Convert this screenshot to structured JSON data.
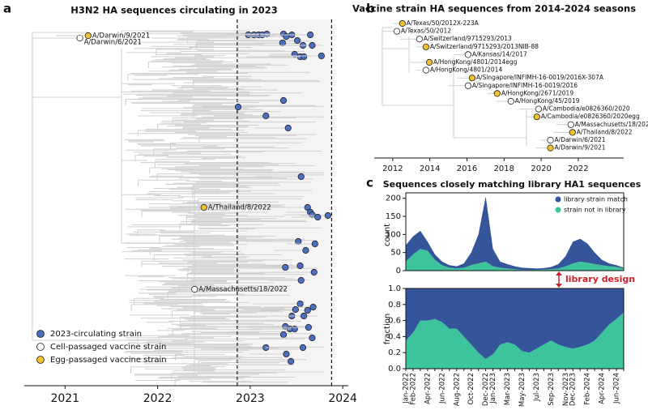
{
  "panel_labels": [
    "a",
    "b",
    "c"
  ],
  "chart_data": [
    {
      "type": "scatter",
      "title": "H3N2 HA sequences circulating in 2023",
      "xlim": [
        2020.56,
        2024.06
      ],
      "xticks": [
        2021,
        2022,
        2023,
        2024
      ],
      "ylim": [
        435,
        0
      ],
      "vlines": [
        2022.86,
        2023.88
      ],
      "series": [
        {
          "name": "2023-circulating strain",
          "color": "#4a6fc0",
          "x": [
            2022.98,
            2023.04,
            2023.09,
            2023.13,
            2023.18,
            2023.36,
            2023.39,
            2023.45,
            2023.65,
            2023.51,
            2023.57,
            2023.35,
            2023.67,
            2023.48,
            2023.54,
            2023.58,
            2023.77,
            2022.87,
            2023.36,
            2023.17,
            2023.41,
            2023.55,
            2023.62,
            2023.65,
            2023.67,
            2023.84,
            2023.73,
            2023.52,
            2023.7,
            2023.6,
            2023.54,
            2023.69,
            2023.38,
            2023.55,
            2023.54,
            2023.68,
            2023.62,
            2023.49,
            2023.45,
            2023.58,
            2023.38,
            2023.43,
            2023.48,
            2023.63,
            2023.36,
            2023.67,
            2023.17,
            2023.57,
            2023.39,
            2023.44
          ],
          "y": [
            8,
            8,
            8,
            8,
            7,
            7,
            10,
            8,
            8,
            15,
            21,
            18,
            21,
            32,
            35,
            35,
            34,
            97,
            89,
            108,
            123,
            183,
            221,
            227,
            230,
            231,
            233,
            263,
            266,
            274,
            293,
            301,
            295,
            311,
            340,
            344,
            348,
            347,
            355,
            355,
            368,
            371,
            371,
            369,
            378,
            382,
            394,
            394,
            402,
            411
          ]
        },
        {
          "name": "Cell-passaged vaccine strain",
          "color": "#ffffff",
          "x": [
            2021.16,
            2022.4
          ],
          "y": [
            12,
            322
          ],
          "labels": [
            "A/Darwin/6/2021",
            "A/Massachusetts/18/2022"
          ]
        },
        {
          "name": "Egg-passaged vaccine strain",
          "color": "#f0c030",
          "x": [
            2021.25,
            2022.5
          ],
          "y": [
            9,
            221
          ],
          "labels": [
            "A/Darwin/9/2021",
            "A/Thailand/8/2022"
          ]
        }
      ]
    },
    {
      "type": "scatter",
      "title": "Vaccine strain HA sequences from 2014-2024 seasons",
      "xlim": [
        2011.0,
        2024.45
      ],
      "xticks": [
        2012,
        2014,
        2016,
        2018,
        2020,
        2022
      ],
      "labels": [
        "A/Texas/50/2012X-223A",
        "A/Texas/50/2012",
        "A/Switzerland/9715293/2013",
        "A/Switzerland/9715293/2013NIB-88",
        "A/Kansas/14/2017",
        "A/HongKong/4801/2014egg",
        "A/HongKong/4801/2014",
        "A/Singapore/INFIMH-16-0019/2016X-307A",
        "A/Singapore/INFIMH-16-0019/2016",
        "A/HongKong/2671/2019",
        "A/HongKong/45/2019",
        "A/Cambodia/e0826360/2020",
        "A/Cambodia/e0826360/2020egg",
        "A/Massachusetts/18/2022",
        "A/Thailand/8/2022",
        "A/Darwin/6/2021",
        "A/Darwin/9/2021"
      ],
      "x": [
        2012.52,
        2012.22,
        2013.44,
        2013.79,
        2016.06,
        2013.97,
        2013.79,
        2016.28,
        2016.06,
        2017.63,
        2018.37,
        2019.86,
        2019.77,
        2021.6,
        2021.69,
        2020.5,
        2020.5
      ],
      "colors": [
        "#f0c030",
        "#ffffff",
        "#ffffff",
        "#f0c030",
        "#ffffff",
        "#f0c030",
        "#ffffff",
        "#f0c030",
        "#ffffff",
        "#f0c030",
        "#ffffff",
        "#ffffff",
        "#f0c030",
        "#ffffff",
        "#f0c030",
        "#ffffff",
        "#f0c030"
      ]
    },
    {
      "type": "area",
      "title": "Sequences closely matching library HA1 sequences",
      "ylabel": "count",
      "categories": [
        "Jan-2022",
        "Feb-2022",
        null,
        "Apr-2022",
        null,
        "Jun-2022",
        null,
        "Aug-2022",
        null,
        "Oct-2022",
        null,
        "Dec-2022",
        "Jan-2023",
        null,
        "Mar-2023",
        null,
        "May-2023",
        null,
        "Jul-2023",
        null,
        "Sep-2023",
        null,
        "Nov-2023",
        "Dec-2023",
        null,
        "Feb-2024",
        null,
        "Apr-2024",
        null,
        "Jun-2024",
        null
      ],
      "ylim": [
        0,
        215
      ],
      "yticks": [
        0,
        50,
        100,
        150,
        200
      ],
      "series": [
        {
          "name": "library strain match",
          "color": "#34559a",
          "values": [
            45,
            50,
            50,
            25,
            15,
            10,
            7,
            6,
            12,
            35,
            80,
            180,
            48,
            17,
            12,
            8,
            6,
            5,
            4,
            4,
            6,
            12,
            28,
            60,
            63,
            53,
            32,
            15,
            8,
            5,
            2
          ]
        },
        {
          "name": "strain not in library",
          "color": "#3ec49c",
          "values": [
            25,
            45,
            60,
            55,
            30,
            15,
            8,
            6,
            8,
            15,
            20,
            25,
            12,
            8,
            6,
            4,
            2,
            2,
            2,
            3,
            4,
            6,
            12,
            20,
            25,
            22,
            18,
            15,
            12,
            10,
            6
          ]
        }
      ]
    },
    {
      "type": "area",
      "ylabel": "fraction",
      "annotation": "library design",
      "ylim": [
        0,
        1
      ],
      "yticks": [
        {
          "value": 0,
          "label": "0.0"
        },
        0.2,
        0.4,
        0.6,
        0.8,
        {
          "value": 1,
          "label": "1.0"
        }
      ],
      "series": [
        {
          "color": "#34559a",
          "values": [
            0.65,
            0.55,
            0.4,
            0.4,
            0.38,
            0.42,
            0.5,
            0.5,
            0.6,
            0.7,
            0.8,
            0.88,
            0.82,
            0.7,
            0.67,
            0.7,
            0.78,
            0.8,
            0.75,
            0.7,
            0.65,
            0.7,
            0.73,
            0.75,
            0.73,
            0.7,
            0.65,
            0.55,
            0.45,
            0.38,
            0.3
          ]
        },
        {
          "color": "#3ec49c",
          "values": [
            0.35,
            0.45,
            0.6,
            0.6,
            0.62,
            0.58,
            0.5,
            0.5,
            0.4,
            0.3,
            0.2,
            0.12,
            0.18,
            0.3,
            0.33,
            0.3,
            0.22,
            0.2,
            0.25,
            0.3,
            0.35,
            0.3,
            0.27,
            0.25,
            0.27,
            0.3,
            0.35,
            0.45,
            0.55,
            0.62,
            0.7
          ]
        }
      ]
    }
  ]
}
